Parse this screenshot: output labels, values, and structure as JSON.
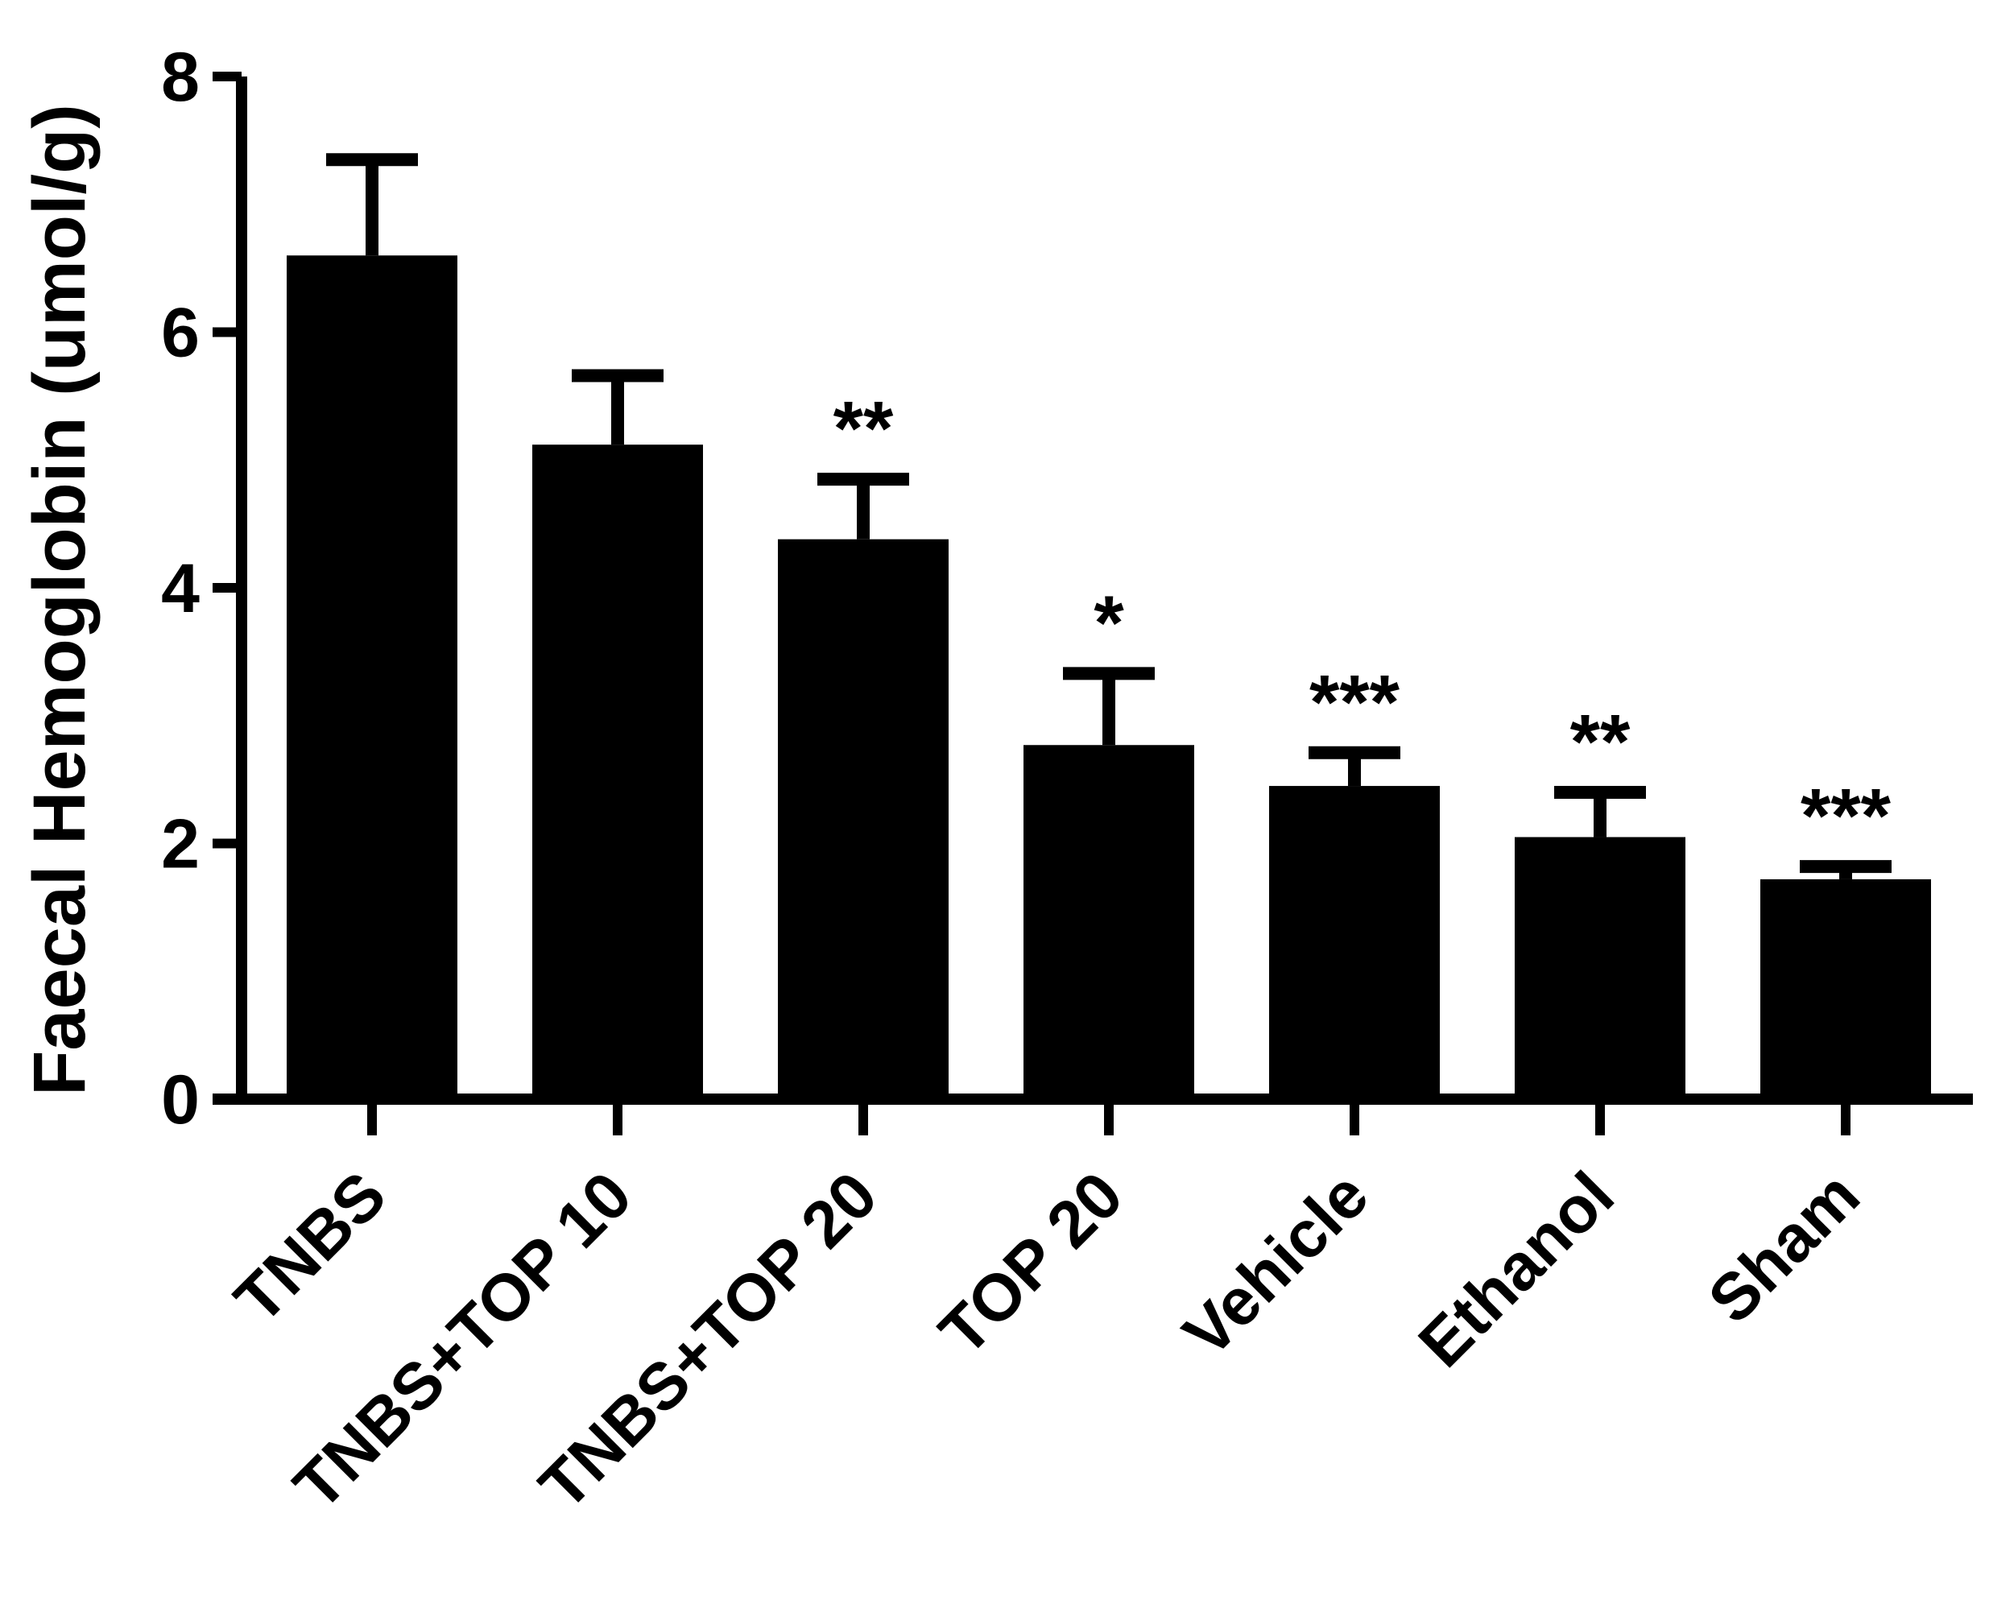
{
  "chart_data": {
    "type": "bar",
    "title": "",
    "xlabel": "",
    "ylabel": "Faecal Hemoglobin (umol/g)",
    "ylim": [
      0,
      8
    ],
    "yticks": [
      "0",
      "2",
      "4",
      "6",
      "8"
    ],
    "categories": [
      "TNBS",
      "TNBS+TOP 10",
      "TNBS+TOP 20",
      "TOP 20",
      "Vehicle",
      "Ethanol",
      "Sham"
    ],
    "values": [
      6.6,
      5.12,
      4.38,
      2.77,
      2.45,
      2.05,
      1.72
    ],
    "errors": [
      0.75,
      0.54,
      0.47,
      0.56,
      0.26,
      0.35,
      0.1
    ],
    "significance": [
      "",
      "",
      "**",
      "*",
      "***",
      "**",
      "***"
    ],
    "bar_color": "#000000",
    "grid": false,
    "legend": "none"
  }
}
